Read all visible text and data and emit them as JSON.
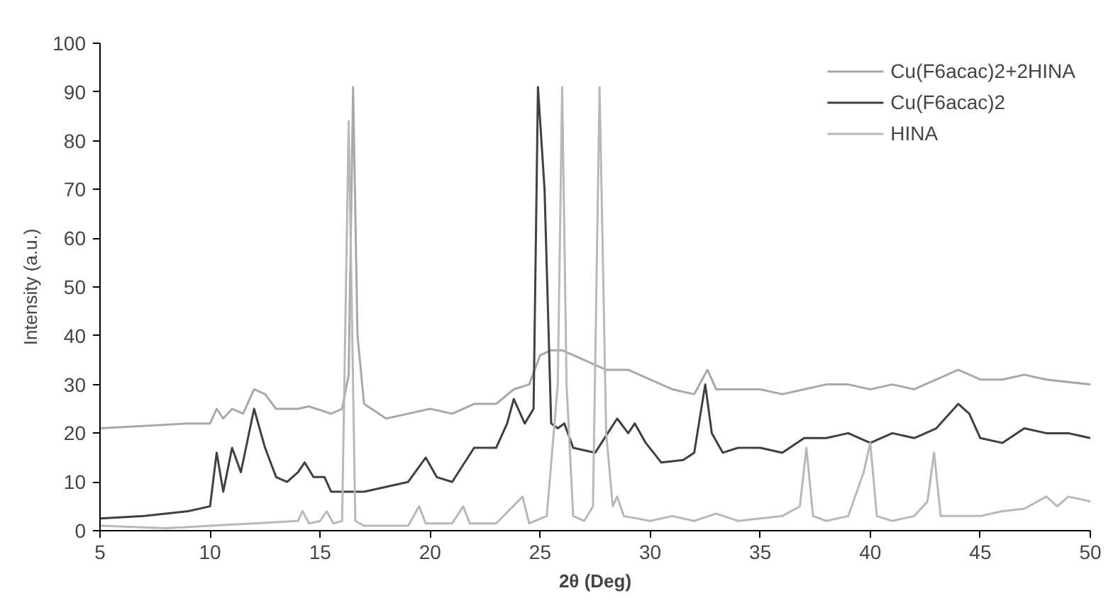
{
  "chart_data": {
    "type": "line",
    "xlabel": "2θ (Deg)",
    "ylabel": "Intensity (a.u.)",
    "xlim": [
      5,
      50
    ],
    "ylim": [
      0,
      100
    ],
    "xticks": [
      5,
      10,
      15,
      20,
      25,
      30,
      35,
      40,
      45,
      50
    ],
    "yticks": [
      0,
      10,
      20,
      30,
      40,
      50,
      60,
      70,
      80,
      90,
      100
    ],
    "grid": false,
    "legend": "top right",
    "marker": "none",
    "line_style": "solid",
    "series": [
      {
        "name": "Cu(F6acac)2+2HINA",
        "color": "#a8a8a8",
        "x": [
          5,
          9,
          10,
          10.3,
          10.6,
          11,
          11.5,
          12,
          12.5,
          13,
          14,
          14.5,
          15.5,
          16,
          16.3,
          16.5,
          16.7,
          17,
          18,
          19,
          20,
          21,
          22,
          23,
          23.8,
          24.5,
          25,
          25.5,
          26,
          27,
          28,
          29,
          30,
          31,
          32,
          32.6,
          33,
          34,
          35,
          36,
          37,
          38,
          39,
          40,
          41,
          42,
          43,
          44,
          45,
          46,
          47,
          48,
          50
        ],
        "values": [
          21,
          22,
          22,
          25,
          23,
          25,
          24,
          29,
          28,
          25,
          25,
          25.5,
          24,
          25,
          32,
          91,
          40,
          26,
          23,
          24,
          25,
          24,
          26,
          26,
          29,
          30,
          36,
          37,
          37,
          35,
          33,
          33,
          31,
          29,
          28,
          33,
          29,
          29,
          29,
          28,
          29,
          30,
          30,
          29,
          30,
          29,
          31,
          33,
          31,
          31,
          32,
          31,
          30
        ]
      },
      {
        "name": "Cu(F6acac)2",
        "color": "#404040",
        "x": [
          5,
          7,
          9,
          10,
          10.3,
          10.6,
          11,
          11.4,
          12,
          12.5,
          13,
          13.5,
          14,
          14.3,
          14.7,
          15.2,
          15.5,
          17,
          19,
          19.8,
          20.3,
          21,
          22,
          23,
          23.5,
          23.8,
          24.3,
          24.7,
          24.9,
          25.2,
          25.5,
          25.8,
          26.1,
          26.5,
          27.5,
          28.5,
          29,
          29.3,
          29.8,
          30.5,
          31.5,
          32,
          32.5,
          32.8,
          33.3,
          34,
          35,
          36,
          37,
          38,
          39,
          40,
          41,
          42,
          43,
          44,
          44.5,
          45,
          46,
          47,
          48,
          49,
          50
        ],
        "values": [
          2.5,
          3,
          4,
          5,
          16,
          8,
          17,
          12,
          25,
          17,
          11,
          10,
          12,
          14,
          11,
          11,
          8,
          8,
          10,
          15,
          11,
          10,
          17,
          17,
          22,
          27,
          22,
          25,
          91,
          70,
          22,
          21,
          22,
          17,
          16,
          23,
          20,
          22,
          18,
          14,
          14.5,
          16,
          30,
          20,
          16,
          17,
          17,
          16,
          19,
          19,
          20,
          18,
          20,
          19,
          21,
          26,
          24,
          19,
          18,
          21,
          20,
          20,
          19
        ]
      },
      {
        "name": "HINA",
        "color": "#b8b8b8",
        "x": [
          5,
          8,
          10,
          12,
          14,
          14.2,
          14.5,
          15,
          15.3,
          15.6,
          16,
          16.3,
          16.6,
          17,
          19,
          19.5,
          19.8,
          21,
          21.5,
          21.8,
          23,
          24.2,
          24.5,
          25.3,
          25.8,
          26,
          26.2,
          26.5,
          27,
          27.4,
          27.7,
          28,
          28.3,
          28.5,
          28.8,
          30,
          31,
          32,
          33,
          34,
          35,
          36,
          36.8,
          37.1,
          37.4,
          38,
          39,
          39.7,
          40,
          40.3,
          41,
          42,
          42.6,
          42.9,
          43.2,
          44,
          45,
          46,
          47,
          48,
          48.5,
          49,
          50
        ],
        "values": [
          1,
          0.5,
          1,
          1.5,
          2,
          4,
          1.5,
          2,
          4,
          1.5,
          2,
          84,
          2,
          1,
          1,
          5,
          1.5,
          1.5,
          5,
          1.5,
          1.5,
          7,
          1.5,
          3,
          30,
          91,
          30,
          3,
          2,
          5,
          91,
          20,
          5,
          7,
          3,
          2,
          3,
          2,
          3.5,
          2,
          2.5,
          3,
          5,
          17,
          3,
          2,
          3,
          12,
          18,
          3,
          2,
          3,
          6,
          16,
          3,
          3,
          3,
          4,
          4.5,
          7,
          5,
          7,
          6
        ]
      }
    ]
  }
}
